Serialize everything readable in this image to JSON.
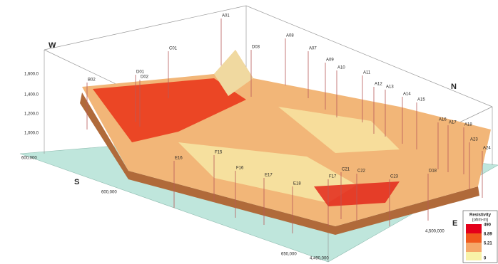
{
  "compass": {
    "west": "W",
    "north": "N",
    "south": "S",
    "east": "E"
  },
  "elevation_ticks": [
    "1,600.0",
    "1,400.0",
    "1,200.0",
    "1,000.0"
  ],
  "coordinate_labels": {
    "left": "600,000",
    "front_left": "600,000",
    "front": "650,000",
    "bottom": "4,490,000",
    "right": "4,500,000"
  },
  "legend": {
    "title": "Resistivity",
    "unit": "(ohm-m)",
    "items": [
      "490",
      "8.89",
      "5.21",
      "0"
    ]
  },
  "boreholes": [
    "A01",
    "B02",
    "C01",
    "D01",
    "D02",
    "D03",
    "A08",
    "A07",
    "A09",
    "A10",
    "A11",
    "A12",
    "A13",
    "A14",
    "A15",
    "A16",
    "A17",
    "A18",
    "A23",
    "A24",
    "C21",
    "C22",
    "C23",
    "D18",
    "E16",
    "E17",
    "E18",
    "F15",
    "F16",
    "F17"
  ]
}
